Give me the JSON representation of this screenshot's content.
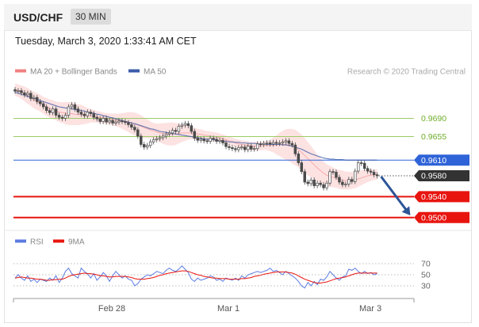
{
  "header": {
    "pair": "USD/CHF",
    "timeframe": "30 MIN"
  },
  "datetime": "Tuesday, March 3, 2020 1:33:41 AM CET",
  "legend": {
    "bollinger": "MA 20 + Bollinger Bands",
    "ma50": "MA 50",
    "research": "Research © 2020 Trading Central",
    "rsi": "RSI",
    "rsi_ma": "9MA"
  },
  "colors": {
    "candle": "#4b4b4b",
    "bollinger_fill": "#fde2e2",
    "bollinger_line": "#f08080",
    "ma50": "#3a5ba8",
    "green_level": "#9ccc65",
    "blue_level": "#2f64d8",
    "red_level": "#e8150f",
    "price_tag": "#333333",
    "rsi": "#5b7be0",
    "rsi_ma": "#e8150f"
  },
  "chart_data": {
    "type": "candlestick",
    "x_ticks": [
      "Feb 28",
      "Mar 1",
      "Mar 3"
    ],
    "y_range": [
      0.948,
      0.9765
    ],
    "levels": [
      {
        "label": "0.9690",
        "value": 0.969,
        "kind": "resistance"
      },
      {
        "label": "0.9655",
        "value": 0.9655,
        "kind": "resistance"
      },
      {
        "label": "0.9610",
        "value": 0.961,
        "kind": "ma50"
      },
      {
        "label": "0.9580",
        "value": 0.958,
        "kind": "current"
      },
      {
        "label": "0.9540",
        "value": 0.954,
        "kind": "target"
      },
      {
        "label": "0.9500",
        "value": 0.95,
        "kind": "target"
      }
    ],
    "close": [
      0.9742,
      0.9743,
      0.9739,
      0.9735,
      0.9738,
      0.9728,
      0.973,
      0.9722,
      0.9718,
      0.9712,
      0.9705,
      0.9701,
      0.9708,
      0.9696,
      0.9692,
      0.969,
      0.9696,
      0.9712,
      0.9716,
      0.9708,
      0.9702,
      0.9698,
      0.9695,
      0.9702,
      0.9699,
      0.9692,
      0.9689,
      0.9684,
      0.969,
      0.9683,
      0.9686,
      0.9681,
      0.9683,
      0.9685,
      0.9684,
      0.9682,
      0.9678,
      0.9673,
      0.9668,
      0.9656,
      0.964,
      0.9635,
      0.9638,
      0.9645,
      0.9649,
      0.9651,
      0.9653,
      0.9656,
      0.966,
      0.9662,
      0.9667,
      0.9665,
      0.9675,
      0.9677,
      0.968,
      0.9676,
      0.9665,
      0.9652,
      0.9648,
      0.965,
      0.9647,
      0.9646,
      0.9652,
      0.965,
      0.9646,
      0.9648,
      0.9643,
      0.9636,
      0.9634,
      0.9632,
      0.963,
      0.9634,
      0.9635,
      0.963,
      0.9637,
      0.9631,
      0.9632,
      0.9641,
      0.964,
      0.9642,
      0.9643,
      0.9641,
      0.9644,
      0.9642,
      0.9643,
      0.9645,
      0.9647,
      0.9642,
      0.9639,
      0.9622,
      0.9605,
      0.9588,
      0.9568,
      0.9565,
      0.9572,
      0.9561,
      0.9566,
      0.9563,
      0.9557,
      0.9566,
      0.9588,
      0.9587,
      0.9577,
      0.9568,
      0.9563,
      0.9564,
      0.9573,
      0.9569,
      0.9589,
      0.9605,
      0.9604,
      0.9594,
      0.9589,
      0.9587,
      0.9582,
      0.958
    ],
    "ma20": [
      0.9745,
      0.9743,
      0.974,
      0.9737,
      0.9733,
      0.9729,
      0.9725,
      0.9722,
      0.9719,
      0.9715,
      0.9712,
      0.9709,
      0.9707,
      0.9704,
      0.9702,
      0.9701,
      0.97,
      0.9699,
      0.9699,
      0.9698,
      0.9697,
      0.9697,
      0.9696,
      0.9695,
      0.9695,
      0.9694,
      0.9693,
      0.9692,
      0.9691,
      0.969,
      0.9689,
      0.9688,
      0.9687,
      0.9686,
      0.9685,
      0.9684,
      0.9683,
      0.9681,
      0.9679,
      0.9677,
      0.9675,
      0.9672,
      0.967,
      0.9668,
      0.9666,
      0.9664,
      0.9662,
      0.9661,
      0.966,
      0.966,
      0.966,
      0.966,
      0.9661,
      0.9662,
      0.9662,
      0.9662,
      0.9662,
      0.9661,
      0.966,
      0.9659,
      0.9658,
      0.9657,
      0.9656,
      0.9655,
      0.9654,
      0.9653,
      0.9651,
      0.9649,
      0.9647,
      0.9645,
      0.9643,
      0.9641,
      0.964,
      0.9639,
      0.9638,
      0.9637,
      0.9637,
      0.9637,
      0.9637,
      0.9638,
      0.9638,
      0.9638,
      0.9639,
      0.9639,
      0.964,
      0.964,
      0.964,
      0.9639,
      0.9637,
      0.9634,
      0.963,
      0.9625,
      0.9619,
      0.9613,
      0.9607,
      0.9601,
      0.9595,
      0.959,
      0.9585,
      0.9581,
      0.9579,
      0.9577,
      0.9575,
      0.9573,
      0.9572,
      0.9571,
      0.9571,
      0.9571,
      0.9572,
      0.9574,
      0.9576,
      0.9578,
      0.958,
      0.9581,
      0.9582,
      0.9583
    ],
    "band_width": [
      0.0012,
      0.0012,
      0.0013,
      0.0014,
      0.0015,
      0.0015,
      0.0016,
      0.0016,
      0.0016,
      0.0016,
      0.0017,
      0.0017,
      0.0018,
      0.0018,
      0.0019,
      0.002,
      0.0021,
      0.0022,
      0.0022,
      0.0021,
      0.002,
      0.0019,
      0.0017,
      0.0015,
      0.0013,
      0.0012,
      0.0011,
      0.0011,
      0.001,
      0.001,
      0.001,
      0.0011,
      0.0012,
      0.0013,
      0.0015,
      0.0017,
      0.0019,
      0.0021,
      0.0022,
      0.0022,
      0.0021,
      0.002,
      0.0018,
      0.0016,
      0.0015,
      0.0016,
      0.0018,
      0.002,
      0.0021,
      0.0022,
      0.0022,
      0.0021,
      0.0019,
      0.0017,
      0.0015,
      0.0013,
      0.0012,
      0.0011,
      0.001,
      0.001,
      0.0009,
      0.0009,
      0.0009,
      0.0009,
      0.0009,
      0.0008,
      0.0008,
      0.0008,
      0.0008,
      0.0008,
      0.0008,
      0.0008,
      0.0008,
      0.0008,
      0.0008,
      0.0008,
      0.0008,
      0.0008,
      0.0008,
      0.0008,
      0.0009,
      0.0011,
      0.0014,
      0.0018,
      0.0022,
      0.0026,
      0.0029,
      0.0031,
      0.0033,
      0.0034,
      0.0034,
      0.0034,
      0.0033,
      0.0032,
      0.003,
      0.0028,
      0.0026,
      0.0024,
      0.0022,
      0.0021,
      0.002,
      0.0019,
      0.0018,
      0.0018,
      0.0018,
      0.0017,
      0.0017,
      0.0016,
      0.0016,
      0.0015,
      0.0014,
      0.0013,
      0.0012,
      0.0011,
      0.001,
      0.001
    ],
    "ma50": [
      0.974,
      0.9738,
      0.9736,
      0.9734,
      0.9732,
      0.973,
      0.9728,
      0.9726,
      0.9724,
      0.9722,
      0.972,
      0.9718,
      0.9716,
      0.9714,
      0.9712,
      0.9711,
      0.971,
      0.9709,
      0.9708,
      0.9707,
      0.9706,
      0.9705,
      0.9704,
      0.9702,
      0.9701,
      0.97,
      0.9698,
      0.9697,
      0.9695,
      0.9694,
      0.9692,
      0.9691,
      0.9689,
      0.9688,
      0.9686,
      0.9684,
      0.9683,
      0.9681,
      0.968,
      0.9678,
      0.9676,
      0.9674,
      0.9672,
      0.967,
      0.9669,
      0.9667,
      0.9665,
      0.9664,
      0.9663,
      0.9662,
      0.9661,
      0.966,
      0.9659,
      0.9658,
      0.9657,
      0.9656,
      0.9655,
      0.9654,
      0.9653,
      0.9652,
      0.9651,
      0.965,
      0.9649,
      0.9649,
      0.9648,
      0.9647,
      0.9646,
      0.9646,
      0.9645,
      0.9645,
      0.9644,
      0.9644,
      0.9643,
      0.9643,
      0.9642,
      0.9642,
      0.9642,
      0.9641,
      0.9641,
      0.9641,
      0.964,
      0.964,
      0.964,
      0.964,
      0.964,
      0.9639,
      0.9639,
      0.9638,
      0.9637,
      0.9635,
      0.9633,
      0.9631,
      0.9628,
      0.9625,
      0.9622,
      0.962,
      0.9618,
      0.9616,
      0.9614,
      0.9613,
      0.9612,
      0.9612,
      0.9611,
      0.9611,
      0.9611,
      0.961,
      0.961,
      0.961,
      0.961,
      0.961,
      0.961,
      0.961,
      0.961,
      0.961,
      0.961,
      0.961
    ],
    "rsi": {
      "levels": [
        70,
        50,
        30
      ],
      "range": [
        0,
        100
      ],
      "rsi": [
        44,
        50,
        44,
        40,
        48,
        38,
        42,
        36,
        42,
        40,
        38,
        44,
        40,
        48,
        36,
        44,
        56,
        62,
        52,
        48,
        44,
        62,
        56,
        52,
        44,
        52,
        40,
        46,
        54,
        48,
        38,
        48,
        56,
        50,
        44,
        48,
        42,
        40,
        30,
        34,
        42,
        46,
        50,
        48,
        52,
        56,
        54,
        52,
        58,
        62,
        58,
        56,
        60,
        66,
        60,
        54,
        42,
        38,
        44,
        40,
        42,
        44,
        48,
        46,
        40,
        42,
        38,
        44,
        42,
        40,
        44,
        40,
        48,
        44,
        50,
        52,
        54,
        56,
        54,
        56,
        58,
        62,
        56,
        58,
        54,
        50,
        56,
        52,
        48,
        44,
        38,
        30,
        26,
        36,
        30,
        38,
        32,
        42,
        40,
        46,
        56,
        50,
        44,
        40,
        46,
        48,
        60,
        58,
        62,
        56,
        52,
        56,
        52,
        54,
        50,
        52
      ],
      "ma": [
        44,
        45,
        46,
        45,
        44,
        44,
        43,
        42,
        42,
        41,
        40,
        40,
        41,
        41,
        42,
        42,
        44,
        47,
        49,
        50,
        51,
        52,
        53,
        52,
        52,
        51,
        50,
        48,
        48,
        47,
        46,
        46,
        47,
        47,
        47,
        47,
        46,
        45,
        43,
        42,
        42,
        42,
        43,
        44,
        45,
        47,
        49,
        50,
        52,
        53,
        54,
        55,
        56,
        57,
        57,
        56,
        54,
        52,
        50,
        49,
        47,
        46,
        45,
        44,
        44,
        43,
        43,
        43,
        42,
        42,
        42,
        42,
        43,
        43,
        44,
        45,
        47,
        48,
        49,
        51,
        52,
        53,
        54,
        55,
        55,
        55,
        55,
        54,
        53,
        51,
        48,
        45,
        42,
        40,
        38,
        36,
        35,
        35,
        36,
        37,
        39,
        41,
        43,
        44,
        45,
        46,
        48,
        50,
        52,
        53,
        53,
        53,
        53,
        53,
        53,
        53
      ]
    }
  }
}
